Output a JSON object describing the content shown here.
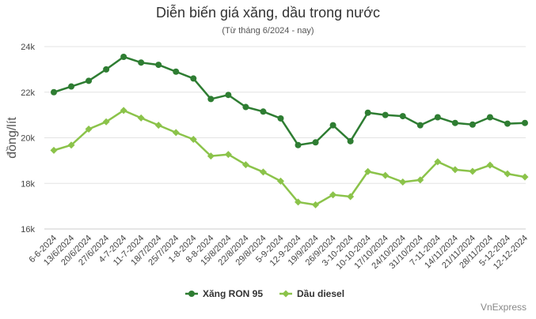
{
  "chart_data": {
    "type": "line",
    "title": "Diễn biến giá xăng, dầu trong nước",
    "subtitle": "(Từ tháng 6/2024 - nay)",
    "ylabel": "đồng/lít",
    "xlabel": "",
    "ylim": [
      16000,
      24000
    ],
    "yticks": [
      16000,
      18000,
      20000,
      22000,
      24000
    ],
    "ytick_labels": [
      "16k",
      "18k",
      "20k",
      "22k",
      "24k"
    ],
    "grid": true,
    "legend_position": "bottom-center",
    "categories": [
      "6-6-2024",
      "13/6/2024",
      "20/6/2024",
      "27/6/2024",
      "4-7-2024",
      "11-7-2024",
      "18/7/2024",
      "25/7/2024",
      "1-8-2024",
      "8-8-2024",
      "15/8/2024",
      "22/8/2024",
      "29/8/2024",
      "5-9-2024",
      "12-9-2024",
      "19/9/2024",
      "26/9/2024",
      "3-10-2024",
      "10-10-2024",
      "17/10/2024",
      "24/10/2024",
      "31/10/2024",
      "7-11-2024",
      "14/11/2024",
      "21/11/2024",
      "28/11/2024",
      "5-12-2024",
      "12-12-2024"
    ],
    "series": [
      {
        "name": "Xăng RON 95",
        "color": "#2e7d32",
        "values": [
          22000,
          22250,
          22500,
          23000,
          23550,
          23300,
          23200,
          22900,
          22600,
          21700,
          21880,
          21350,
          21150,
          20850,
          19680,
          19800,
          20550,
          19850,
          21100,
          21000,
          20950,
          20550,
          20900,
          20650,
          20580,
          20900,
          20620,
          20650
        ]
      },
      {
        "name": "Dầu diesel",
        "color": "#8bc34a",
        "values": [
          19450,
          19680,
          20380,
          20700,
          21200,
          20870,
          20550,
          20230,
          19930,
          19200,
          19270,
          18820,
          18500,
          18100,
          17180,
          17060,
          17500,
          17420,
          18520,
          18350,
          18060,
          18150,
          18950,
          18600,
          18530,
          18800,
          18420,
          18280
        ]
      }
    ]
  },
  "credit": "VnExpress"
}
